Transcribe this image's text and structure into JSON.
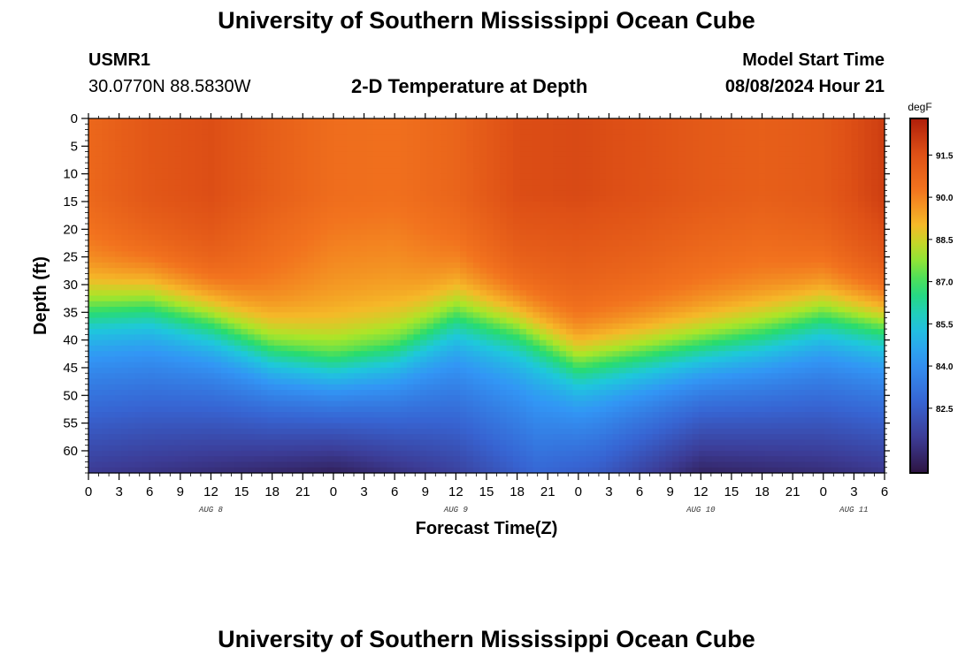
{
  "page": {
    "title_top": "University of Southern Mississippi Ocean Cube",
    "title_bottom": "University of Southern Mississippi Ocean Cube"
  },
  "station": {
    "id": "USMR1",
    "coords": "30.0770N  88.5830W"
  },
  "model": {
    "label": "Model Start Time",
    "start": "08/08/2024 Hour 21"
  },
  "chart_data": {
    "type": "heatmap",
    "title": "2-D Temperature at Depth",
    "xlabel": "Forecast Time(Z)",
    "ylabel": "Depth (ft)",
    "units": "degF",
    "xlim_hours": [
      0,
      78
    ],
    "ylim_ft": [
      0,
      64
    ],
    "x_tick_labels": [
      "0",
      "3",
      "6",
      "9",
      "12",
      "15",
      "18",
      "21",
      "0",
      "3",
      "6",
      "9",
      "12",
      "15",
      "18",
      "21",
      "0",
      "3",
      "6",
      "9",
      "12",
      "15",
      "18",
      "21",
      "0",
      "3",
      "6"
    ],
    "x_tick_hours": [
      0,
      3,
      6,
      9,
      12,
      15,
      18,
      21,
      24,
      27,
      30,
      33,
      36,
      39,
      42,
      45,
      48,
      51,
      54,
      57,
      60,
      63,
      66,
      69,
      72,
      75,
      78
    ],
    "date_labels": [
      {
        "text": "AUG 8",
        "hour": 12
      },
      {
        "text": "AUG 9",
        "hour": 36
      },
      {
        "text": "AUG 10",
        "hour": 60
      },
      {
        "text": "AUG 11",
        "hour": 75
      }
    ],
    "y_ticks": [
      0,
      5,
      10,
      15,
      20,
      25,
      30,
      35,
      40,
      45,
      50,
      55,
      60
    ],
    "colorbar": {
      "min": 80.2,
      "max": 92.8,
      "ticks": [
        "91.5",
        "90.0",
        "88.5",
        "87.0",
        "85.5",
        "84.0",
        "82.5"
      ],
      "tick_values": [
        91.5,
        90.0,
        88.5,
        87.0,
        85.5,
        84.0,
        82.5
      ]
    },
    "thermocline_depth_ft": {
      "hours": [
        0,
        6,
        12,
        18,
        24,
        30,
        36,
        42,
        48,
        54,
        60,
        66,
        72,
        78
      ],
      "depth": [
        33,
        32,
        35,
        40,
        42,
        40,
        34,
        37,
        43,
        41,
        39,
        37,
        34,
        36
      ]
    },
    "surface_temp_degF": {
      "hours": [
        0,
        6,
        12,
        18,
        24,
        30,
        36,
        42,
        48,
        54,
        60,
        66,
        72,
        78
      ],
      "temp": [
        90.7,
        91.3,
        91.6,
        91.0,
        90.5,
        90.4,
        90.8,
        91.6,
        91.7,
        91.5,
        91.2,
        91.0,
        91.2,
        92.0
      ]
    },
    "bottom_temp_degF": {
      "hours": [
        0,
        12,
        24,
        36,
        44,
        50,
        60,
        72,
        78
      ],
      "temp": [
        81.4,
        81.0,
        80.6,
        81.6,
        82.8,
        82.4,
        80.7,
        81.0,
        81.3
      ]
    }
  }
}
